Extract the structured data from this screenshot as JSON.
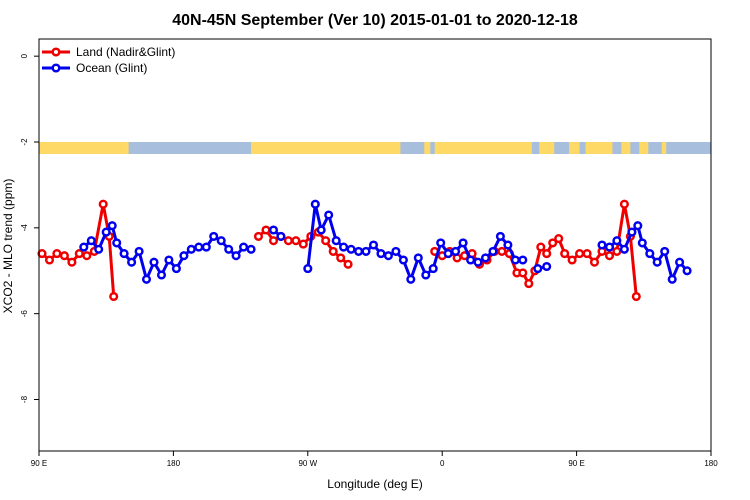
{
  "chart_data": {
    "type": "line",
    "title": "40N-45N September (Ver 10)   2015-01-01 to 2020-12-18",
    "xlabel": "Longitude (deg E)",
    "ylabel": "XCO2 - MLO trend (ppm)",
    "xlim": [
      90,
      540
    ],
    "ylim": [
      -9.2,
      0.4
    ],
    "x_ticks": [
      {
        "value": 90,
        "label": "90 E"
      },
      {
        "value": 180,
        "label": "180"
      },
      {
        "value": 270,
        "label": "90 W"
      },
      {
        "value": 360,
        "label": "0"
      },
      {
        "value": 450,
        "label": "90 E"
      },
      {
        "value": 540,
        "label": "180"
      }
    ],
    "y_ticks": [
      {
        "value": 0,
        "label": "0"
      },
      {
        "value": -2,
        "label": "-2"
      },
      {
        "value": -4,
        "label": "-4"
      },
      {
        "value": -6,
        "label": "-6"
      },
      {
        "value": -8,
        "label": "-8"
      }
    ],
    "grid": false,
    "legend_position": "top-left",
    "land_ocean_strip": {
      "land_color": "#ffd966",
      "ocean_color": "#a7bfdd",
      "land_ranges": [
        [
          90,
          145
        ],
        [
          145,
          150
        ],
        [
          146,
          148
        ],
        [
          232,
          332
        ],
        [
          348,
          352
        ],
        [
          355,
          420
        ],
        [
          425,
          435
        ],
        [
          445,
          452
        ],
        [
          456,
          474
        ],
        [
          480,
          486
        ],
        [
          492,
          498
        ],
        [
          507,
          510
        ]
      ]
    },
    "series": [
      {
        "name": "Land (Nadir&Glint)",
        "color": "#ee0000",
        "segments": [
          [
            [
              92,
              -4.6
            ],
            [
              97,
              -4.75
            ],
            [
              102,
              -4.6
            ],
            [
              107,
              -4.65
            ],
            [
              112,
              -4.8
            ],
            [
              117,
              -4.6
            ],
            [
              122,
              -4.65
            ],
            [
              127,
              -4.55
            ],
            [
              133,
              -3.45
            ],
            [
              137,
              -4.2
            ],
            [
              140,
              -5.6
            ]
          ],
          [
            [
              237,
              -4.2
            ],
            [
              242,
              -4.05
            ],
            [
              247,
              -4.3
            ],
            [
              252,
              -4.2
            ],
            [
              257,
              -4.3
            ],
            [
              262,
              -4.3
            ],
            [
              267,
              -4.38
            ],
            [
              272,
              -4.2
            ],
            [
              277,
              -4.1
            ],
            [
              282,
              -4.3
            ],
            [
              287,
              -4.55
            ],
            [
              292,
              -4.7
            ],
            [
              297,
              -4.85
            ]
          ],
          [
            [
              355,
              -4.55
            ],
            [
              360,
              -4.65
            ],
            [
              365,
              -4.55
            ],
            [
              370,
              -4.7
            ],
            [
              375,
              -4.65
            ],
            [
              380,
              -4.6
            ],
            [
              385,
              -4.85
            ],
            [
              390,
              -4.75
            ],
            [
              395,
              -4.55
            ],
            [
              400,
              -4.55
            ],
            [
              405,
              -4.6
            ],
            [
              410,
              -5.05
            ],
            [
              414,
              -5.05
            ],
            [
              418,
              -5.3
            ],
            [
              422,
              -5.0
            ],
            [
              426,
              -4.45
            ],
            [
              430,
              -4.6
            ],
            [
              434,
              -4.35
            ],
            [
              438,
              -4.25
            ],
            [
              442,
              -4.6
            ],
            [
              447,
              -4.75
            ],
            [
              452,
              -4.6
            ],
            [
              457,
              -4.6
            ],
            [
              462,
              -4.8
            ],
            [
              467,
              -4.55
            ],
            [
              472,
              -4.65
            ],
            [
              477,
              -4.55
            ],
            [
              482,
              -3.45
            ],
            [
              486,
              -4.2
            ],
            [
              490,
              -5.6
            ]
          ]
        ]
      },
      {
        "name": "Ocean (Glint)",
        "color": "#0000ee",
        "segments": [
          [
            [
              120,
              -4.45
            ],
            [
              125,
              -4.3
            ],
            [
              130,
              -4.5
            ],
            [
              135,
              -4.1
            ],
            [
              139,
              -3.95
            ],
            [
              142,
              -4.35
            ],
            [
              147,
              -4.6
            ],
            [
              152,
              -4.8
            ],
            [
              157,
              -4.55
            ],
            [
              162,
              -5.2
            ],
            [
              167,
              -4.8
            ],
            [
              172,
              -5.1
            ],
            [
              177,
              -4.75
            ],
            [
              182,
              -4.95
            ],
            [
              187,
              -4.65
            ],
            [
              192,
              -4.5
            ],
            [
              197,
              -4.45
            ],
            [
              202,
              -4.45
            ],
            [
              207,
              -4.2
            ],
            [
              212,
              -4.3
            ],
            [
              217,
              -4.5
            ],
            [
              222,
              -4.65
            ],
            [
              227,
              -4.45
            ],
            [
              232,
              -4.5
            ]
          ],
          [
            [
              247,
              -4.05
            ],
            [
              252,
              -4.2
            ]
          ],
          [
            [
              270,
              -4.95
            ],
            [
              275,
              -3.45
            ],
            [
              279,
              -4.05
            ],
            [
              284,
              -3.7
            ],
            [
              289,
              -4.3
            ],
            [
              294,
              -4.45
            ],
            [
              299,
              -4.5
            ],
            [
              304,
              -4.55
            ],
            [
              309,
              -4.55
            ],
            [
              314,
              -4.4
            ],
            [
              319,
              -4.6
            ],
            [
              324,
              -4.65
            ],
            [
              329,
              -4.55
            ],
            [
              334,
              -4.75
            ],
            [
              339,
              -5.2
            ],
            [
              344,
              -4.7
            ],
            [
              349,
              -5.1
            ],
            [
              354,
              -4.95
            ],
            [
              359,
              -4.35
            ],
            [
              364,
              -4.6
            ],
            [
              369,
              -4.55
            ],
            [
              374,
              -4.35
            ],
            [
              379,
              -4.75
            ],
            [
              384,
              -4.8
            ],
            [
              389,
              -4.7
            ],
            [
              394,
              -4.55
            ],
            [
              399,
              -4.2
            ],
            [
              404,
              -4.4
            ],
            [
              409,
              -4.75
            ],
            [
              414,
              -4.75
            ]
          ],
          [
            [
              424,
              -4.95
            ],
            [
              430,
              -4.9
            ]
          ],
          [
            [
              467,
              -4.4
            ],
            [
              472,
              -4.45
            ],
            [
              477,
              -4.3
            ],
            [
              482,
              -4.5
            ],
            [
              487,
              -4.1
            ],
            [
              491,
              -3.95
            ],
            [
              494,
              -4.35
            ],
            [
              499,
              -4.6
            ],
            [
              504,
              -4.8
            ],
            [
              509,
              -4.55
            ],
            [
              514,
              -5.2
            ],
            [
              519,
              -4.8
            ],
            [
              524,
              -5.0
            ]
          ]
        ]
      }
    ]
  }
}
